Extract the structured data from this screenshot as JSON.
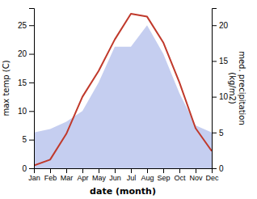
{
  "chart_data": {
    "type": "line",
    "categories": [
      "Jan",
      "Feb",
      "Mar",
      "Apr",
      "May",
      "Jun",
      "Jul",
      "Aug",
      "Sep",
      "Oct",
      "Nov",
      "Dec"
    ],
    "series": [
      {
        "type": "area",
        "axis": "y2",
        "color": "#c5cef0",
        "values": [
          5.0,
          5.5,
          6.5,
          8.0,
          12.0,
          17.0,
          17.0,
          20.0,
          16.0,
          10.5,
          6.0,
          5.0
        ]
      },
      {
        "type": "line",
        "color": "#c0392b",
        "values": [
          0.5,
          1.5,
          6.0,
          12.5,
          17.0,
          22.5,
          27.0,
          26.5,
          22.0,
          15.0,
          7.0,
          3.0
        ]
      }
    ],
    "xlabel": "date (month)",
    "ylabel": "max temp (C)",
    "y2label": "med. precipitation\n(kg/m2)",
    "ylim": [
      0,
      28
    ],
    "yticks": [
      0,
      5,
      10,
      15,
      20,
      25
    ],
    "y2lim": [
      0,
      22.4
    ],
    "y2ticks": [
      0,
      5,
      10,
      15,
      20
    ]
  }
}
